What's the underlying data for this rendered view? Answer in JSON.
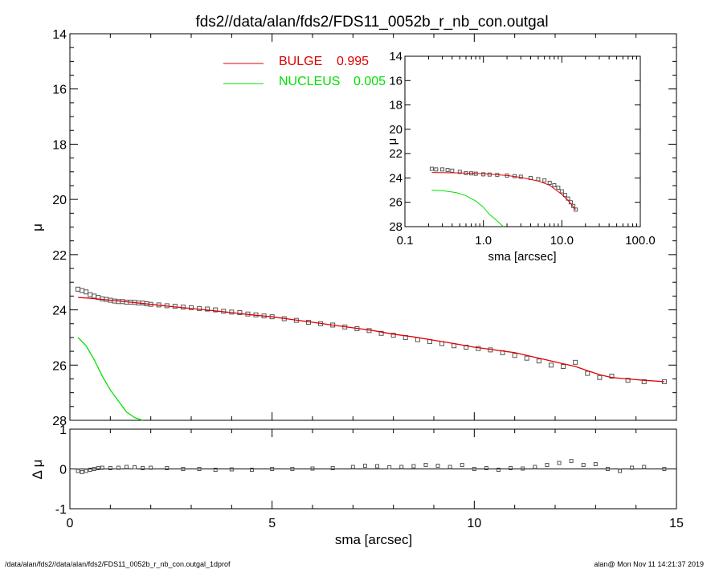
{
  "title": "fds2//data/alan/fds2/FDS11_0052b_r_nb_con.outgal",
  "footer": {
    "left": "/data/alan/fds2//data/alan/fds2/FDS11_0052b_r_nb_con.outgal_1dprof",
    "right": "alan@  Mon Nov 11 14:21:37 2019"
  },
  "legend": [
    {
      "name": "BULGE",
      "value": "0.995",
      "color": "#e00000"
    },
    {
      "name": "NUCLEUS",
      "value": "0.005",
      "color": "#00e000"
    }
  ],
  "colors": {
    "bulge": "#e00000",
    "nucleus": "#00e000",
    "data": "#555555",
    "axes": "#000000"
  },
  "chart_data": [
    {
      "id": "main",
      "type": "line",
      "xlabel": "sma [arcsec]",
      "ylabel": "μ",
      "xlim": [
        0,
        15
      ],
      "ylim": [
        28,
        14
      ],
      "yinverted": true,
      "xticks": [
        "0",
        "5",
        "10",
        "15"
      ],
      "yticks": [
        "14",
        "16",
        "18",
        "20",
        "22",
        "24",
        "26",
        "28"
      ],
      "series": [
        {
          "name": "data",
          "kind": "squares",
          "x": [
            0.2,
            0.3,
            0.4,
            0.5,
            0.6,
            0.7,
            0.8,
            0.9,
            1.0,
            1.1,
            1.2,
            1.3,
            1.4,
            1.5,
            1.6,
            1.7,
            1.8,
            1.9,
            2.0,
            2.2,
            2.4,
            2.6,
            2.8,
            3.0,
            3.2,
            3.4,
            3.6,
            3.8,
            4.0,
            4.2,
            4.4,
            4.6,
            4.8,
            5.0,
            5.3,
            5.6,
            5.9,
            6.2,
            6.5,
            6.8,
            7.1,
            7.4,
            7.7,
            8.0,
            8.3,
            8.6,
            8.9,
            9.2,
            9.5,
            9.8,
            10.1,
            10.4,
            10.7,
            11.0,
            11.3,
            11.6,
            11.9,
            12.2,
            12.5,
            12.8,
            13.1,
            13.4,
            13.8,
            14.2,
            14.7
          ],
          "y": [
            23.25,
            23.3,
            23.35,
            23.45,
            23.5,
            23.55,
            23.6,
            23.62,
            23.65,
            23.68,
            23.7,
            23.7,
            23.72,
            23.72,
            23.73,
            23.75,
            23.75,
            23.78,
            23.8,
            23.82,
            23.85,
            23.87,
            23.9,
            23.92,
            23.95,
            23.97,
            24.0,
            24.05,
            24.08,
            24.1,
            24.15,
            24.18,
            24.22,
            24.25,
            24.32,
            24.38,
            24.45,
            24.5,
            24.55,
            24.62,
            24.68,
            24.75,
            24.85,
            24.92,
            25.0,
            25.08,
            25.15,
            25.22,
            25.3,
            25.35,
            25.4,
            25.45,
            25.55,
            25.65,
            25.75,
            25.85,
            26.0,
            26.05,
            25.9,
            26.3,
            26.45,
            26.4,
            26.55,
            26.6,
            26.6
          ]
        },
        {
          "name": "BULGE",
          "kind": "line",
          "color": "#e00000",
          "x": [
            0.2,
            0.5,
            1.0,
            1.5,
            2.0,
            2.5,
            3.0,
            3.5,
            4.0,
            4.5,
            5.0,
            5.5,
            6.0,
            6.5,
            7.0,
            7.5,
            8.0,
            8.5,
            9.0,
            9.5,
            10.0,
            10.5,
            11.0,
            11.3,
            11.6,
            11.9,
            12.2,
            12.5,
            12.8,
            13.1,
            13.4,
            13.8,
            14.2,
            14.7
          ],
          "y": [
            23.55,
            23.58,
            23.65,
            23.72,
            23.8,
            23.88,
            23.95,
            24.02,
            24.1,
            24.18,
            24.25,
            24.35,
            24.45,
            24.55,
            24.65,
            24.75,
            24.88,
            24.98,
            25.1,
            25.22,
            25.35,
            25.45,
            25.55,
            25.65,
            25.75,
            25.85,
            25.95,
            26.05,
            26.2,
            26.35,
            26.45,
            26.5,
            26.55,
            26.6
          ]
        },
        {
          "name": "NUCLEUS",
          "kind": "line",
          "color": "#00e000",
          "x": [
            0.2,
            0.4,
            0.6,
            0.8,
            1.0,
            1.2,
            1.4,
            1.6,
            1.8
          ],
          "y": [
            25.0,
            25.3,
            25.8,
            26.4,
            26.9,
            27.3,
            27.7,
            27.9,
            28.0
          ]
        }
      ]
    },
    {
      "id": "residual",
      "type": "scatter",
      "xlabel": "sma [arcsec]",
      "ylabel": "Δ μ",
      "xlim": [
        0,
        15
      ],
      "ylim": [
        -1,
        1
      ],
      "yticks": [
        "1",
        "0",
        "-1"
      ],
      "series": [
        {
          "name": "residual",
          "x": [
            0.2,
            0.3,
            0.4,
            0.5,
            0.6,
            0.7,
            0.8,
            1.0,
            1.2,
            1.4,
            1.6,
            1.8,
            2.0,
            2.4,
            2.8,
            3.2,
            3.6,
            4.0,
            4.5,
            5.0,
            5.5,
            6.0,
            6.5,
            7.0,
            7.3,
            7.6,
            7.9,
            8.2,
            8.5,
            8.8,
            9.1,
            9.4,
            9.7,
            10.0,
            10.3,
            10.6,
            10.9,
            11.2,
            11.5,
            11.8,
            12.1,
            12.4,
            12.7,
            13.0,
            13.3,
            13.6,
            13.9,
            14.2,
            14.7
          ],
          "y": [
            -0.05,
            -0.08,
            -0.05,
            -0.02,
            0.0,
            0.02,
            0.03,
            0.02,
            0.03,
            0.05,
            0.04,
            0.02,
            0.03,
            0.02,
            0.0,
            0.0,
            -0.02,
            -0.01,
            -0.02,
            0.0,
            0.0,
            0.01,
            0.02,
            0.05,
            0.08,
            0.07,
            0.04,
            0.05,
            0.07,
            0.1,
            0.08,
            0.05,
            0.1,
            0.0,
            0.02,
            -0.02,
            0.02,
            0.01,
            0.05,
            0.1,
            0.15,
            0.2,
            0.1,
            0.12,
            0.0,
            -0.05,
            0.03,
            0.05,
            0.0
          ]
        }
      ]
    },
    {
      "id": "inset",
      "type": "line",
      "xlabel": "sma [arcsec]",
      "ylabel": "μ",
      "xscale": "log",
      "xlim": [
        0.1,
        100
      ],
      "ylim": [
        28,
        14
      ],
      "xticks": [
        "0.1",
        "1.0",
        "10.0",
        "100.0"
      ],
      "yticks": [
        "14",
        "16",
        "18",
        "20",
        "22",
        "24",
        "26",
        "28"
      ],
      "series": [
        {
          "name": "data",
          "kind": "squares",
          "x": [
            0.22,
            0.25,
            0.3,
            0.35,
            0.4,
            0.5,
            0.6,
            0.7,
            0.8,
            1.0,
            1.2,
            1.5,
            2.0,
            2.5,
            3.0,
            4.0,
            5.0,
            6.0,
            7.0,
            8.0,
            9.0,
            10.0,
            11.0,
            12.0,
            13.0,
            14.0,
            15.0
          ],
          "y": [
            23.25,
            23.3,
            23.3,
            23.35,
            23.4,
            23.5,
            23.6,
            23.62,
            23.65,
            23.7,
            23.72,
            23.75,
            23.8,
            23.85,
            23.9,
            24.0,
            24.1,
            24.2,
            24.4,
            24.6,
            24.8,
            25.1,
            25.4,
            25.7,
            26.0,
            26.3,
            26.6
          ]
        },
        {
          "name": "BULGE",
          "kind": "line",
          "color": "#e00000",
          "x": [
            0.22,
            0.5,
            1.0,
            2.0,
            3.0,
            5.0,
            7.0,
            10.0,
            12.0,
            15.0
          ],
          "y": [
            23.55,
            23.58,
            23.65,
            23.8,
            23.95,
            24.25,
            24.6,
            25.35,
            25.85,
            26.6
          ]
        },
        {
          "name": "NUCLEUS",
          "kind": "line",
          "color": "#00e000",
          "x": [
            0.22,
            0.3,
            0.45,
            0.6,
            0.8,
            1.0,
            1.2,
            1.4,
            1.6,
            1.8
          ],
          "y": [
            25.0,
            25.05,
            25.2,
            25.45,
            25.9,
            26.4,
            27.0,
            27.35,
            27.7,
            28.0
          ]
        }
      ]
    }
  ]
}
